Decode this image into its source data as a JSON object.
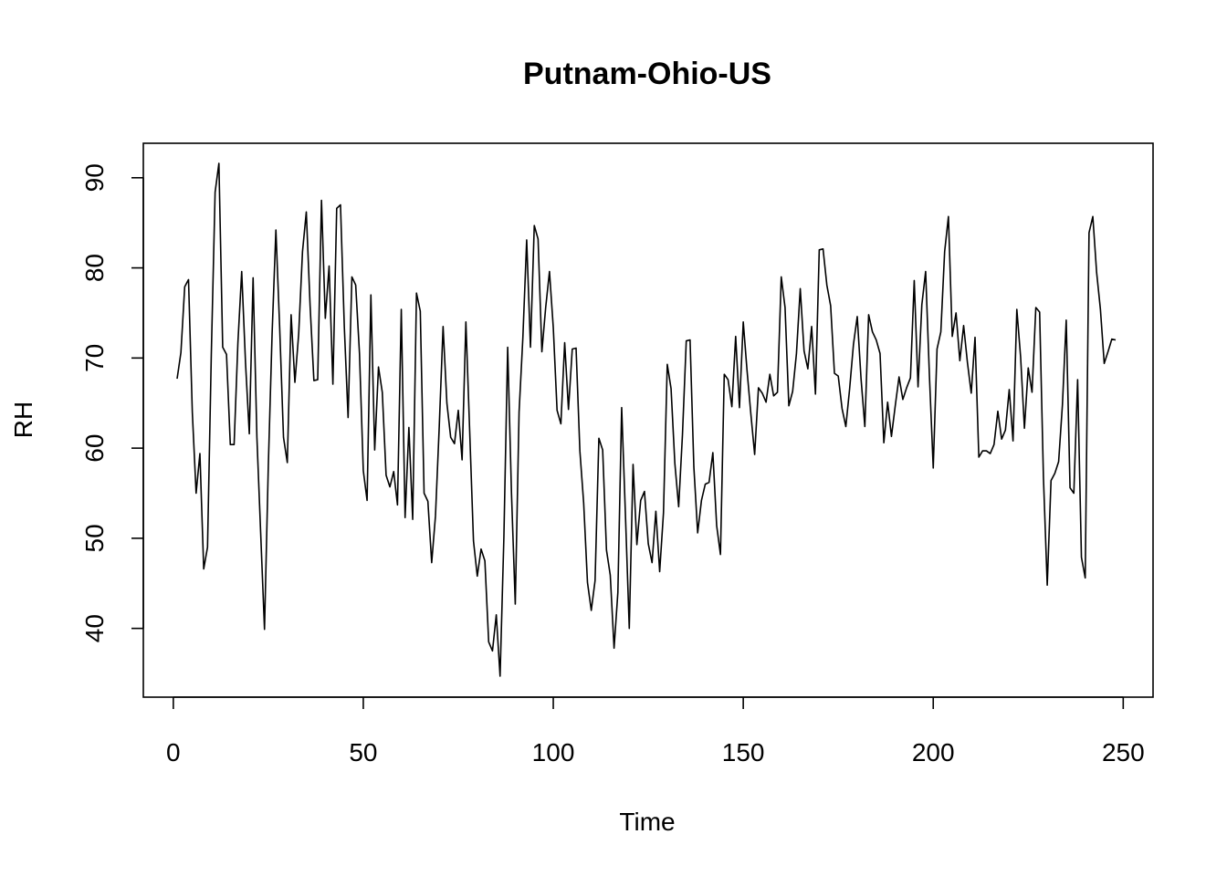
{
  "chart_data": {
    "type": "line",
    "title": "Putnam-Ohio-US",
    "xlabel": "Time",
    "ylabel": "RH",
    "xlim": [
      1,
      248
    ],
    "ylim": [
      34.7,
      91.6
    ],
    "xticks": [
      0,
      50,
      100,
      150,
      200,
      250
    ],
    "yticks": [
      40,
      50,
      60,
      70,
      80,
      90
    ],
    "xtick_labels": [
      "0",
      "50",
      "100",
      "150",
      "200",
      "250"
    ],
    "ytick_labels": [
      "40",
      "50",
      "60",
      "70",
      "80",
      "90"
    ],
    "grid": false,
    "x_start": 1,
    "series": [
      {
        "values": [
          67.7,
          70.6,
          77.9,
          78.7,
          64.0,
          55.0,
          59.4,
          46.6,
          49.0,
          70.4,
          88.4,
          91.6,
          71.2,
          70.4,
          60.4,
          60.4,
          71.7,
          79.6,
          69.5,
          61.6,
          78.9,
          61.2,
          50.5,
          39.9,
          58.0,
          72.7,
          84.2,
          73.3,
          61.2,
          58.4,
          74.8,
          67.3,
          72.7,
          81.8,
          86.2,
          75.8,
          67.5,
          67.6,
          87.5,
          74.4,
          80.2,
          67.1,
          86.6,
          87.0,
          73.5,
          63.4,
          79.0,
          78.1,
          70.5,
          57.5,
          54.2,
          77.0,
          59.8,
          69.0,
          66.2,
          57.0,
          55.7,
          57.4,
          53.7,
          75.4,
          52.3,
          62.3,
          52.1,
          77.2,
          75.2,
          55.0,
          54.1,
          47.3,
          52.5,
          62.5,
          73.5,
          65.0,
          61.2,
          60.5,
          64.2,
          58.7,
          74.0,
          61.9,
          49.7,
          45.8,
          48.8,
          47.5,
          38.5,
          37.5,
          41.5,
          34.7,
          50.1,
          71.2,
          55.0,
          42.7,
          64.0,
          72.3,
          83.1,
          71.2,
          84.7,
          83.2,
          70.7,
          75.6,
          79.6,
          73.4,
          64.2,
          62.7,
          71.7,
          64.3,
          71.0,
          71.1,
          59.7,
          53.9,
          45.1,
          42.0,
          45.3,
          61.1,
          59.8,
          48.7,
          45.9,
          37.8,
          44.0,
          64.5,
          52.5,
          40.0,
          58.2,
          49.3,
          54.2,
          55.2,
          49.4,
          47.3,
          53.0,
          46.3,
          52.8,
          69.3,
          66.6,
          58.3,
          53.5,
          61.5,
          71.9,
          72.0,
          57.9,
          50.6,
          54.2,
          56.0,
          56.2,
          59.5,
          51.4,
          48.2,
          68.2,
          67.6,
          64.6,
          72.4,
          64.5,
          74.0,
          68.6,
          63.8,
          59.3,
          66.7,
          66.1,
          65.1,
          68.2,
          65.8,
          66.2,
          79.0,
          75.6,
          64.7,
          66.3,
          70.5,
          77.7,
          70.8,
          68.8,
          73.5,
          66.0,
          82.0,
          82.1,
          78.1,
          75.8,
          68.3,
          68.0,
          64.4,
          62.4,
          66.6,
          71.5,
          74.6,
          67.7,
          62.4,
          74.8,
          72.9,
          72.0,
          70.5,
          60.6,
          65.1,
          61.3,
          64.7,
          67.9,
          65.4,
          66.7,
          67.8,
          78.6,
          66.8,
          75.9,
          79.6,
          68.0,
          57.8,
          71.0,
          72.9,
          81.8,
          85.7,
          72.4,
          75.0,
          69.7,
          73.6,
          69.5,
          66.1,
          72.3,
          59.0,
          59.7,
          59.7,
          59.4,
          60.4,
          64.1,
          61.0,
          62.0,
          66.5,
          60.8,
          75.4,
          70.1,
          62.2,
          68.9,
          66.2,
          75.6,
          75.1,
          56.8,
          44.8,
          56.4,
          57.2,
          58.5,
          64.8,
          74.2,
          55.6,
          55.0,
          67.6,
          47.9,
          45.6,
          83.9,
          85.7,
          79.5,
          75.4,
          69.4,
          70.7,
          72.1,
          72.0
        ]
      }
    ]
  }
}
